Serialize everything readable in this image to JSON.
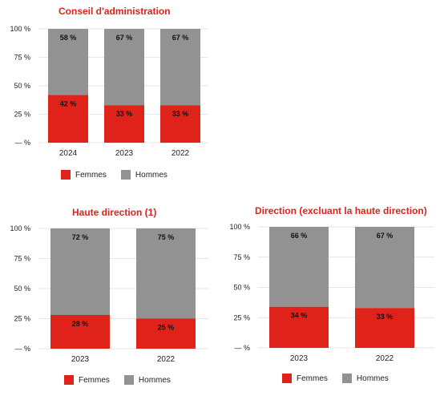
{
  "colors": {
    "femmes": "#e0231a",
    "hommes": "#929292",
    "title": "#e0231a"
  },
  "legend": {
    "femmes": "Femmes",
    "hommes": "Hommes"
  },
  "chart_data": [
    {
      "type": "bar",
      "stacked": true,
      "title": "Conseil d'administration",
      "categories": [
        "2024",
        "2023",
        "2022"
      ],
      "series": [
        {
          "name": "Femmes",
          "values": [
            42,
            33,
            33
          ]
        },
        {
          "name": "Hommes",
          "values": [
            58,
            67,
            67
          ]
        }
      ],
      "data_labels": {
        "Femmes": [
          "42 %",
          "33 %",
          "33 %"
        ],
        "Hommes": [
          "58 %",
          "67 %",
          "67 %"
        ]
      },
      "yticks": [
        "— %",
        "25 %",
        "50 %",
        "75 %",
        "100 %"
      ],
      "ylim": [
        0,
        100
      ],
      "legend_position": "bottom"
    },
    {
      "type": "bar",
      "stacked": true,
      "title": "Haute direction (1)",
      "categories": [
        "2023",
        "2022"
      ],
      "series": [
        {
          "name": "Femmes",
          "values": [
            28,
            25
          ]
        },
        {
          "name": "Hommes",
          "values": [
            72,
            75
          ]
        }
      ],
      "data_labels": {
        "Femmes": [
          "28 %",
          "25 %"
        ],
        "Hommes": [
          "72 %",
          "75 %"
        ]
      },
      "yticks": [
        "— %",
        "25 %",
        "50 %",
        "75 %",
        "100 %"
      ],
      "ylim": [
        0,
        100
      ],
      "legend_position": "bottom"
    },
    {
      "type": "bar",
      "stacked": true,
      "title": "Direction (excluant la haute direction)",
      "categories": [
        "2023",
        "2022"
      ],
      "series": [
        {
          "name": "Femmes",
          "values": [
            34,
            33
          ]
        },
        {
          "name": "Hommes",
          "values": [
            66,
            67
          ]
        }
      ],
      "data_labels": {
        "Femmes": [
          "34 %",
          "33 %"
        ],
        "Hommes": [
          "66 %",
          "67 %"
        ]
      },
      "yticks": [
        "— %",
        "25 %",
        "50 %",
        "75 %",
        "100 %"
      ],
      "ylim": [
        0,
        100
      ],
      "legend_position": "bottom"
    }
  ]
}
